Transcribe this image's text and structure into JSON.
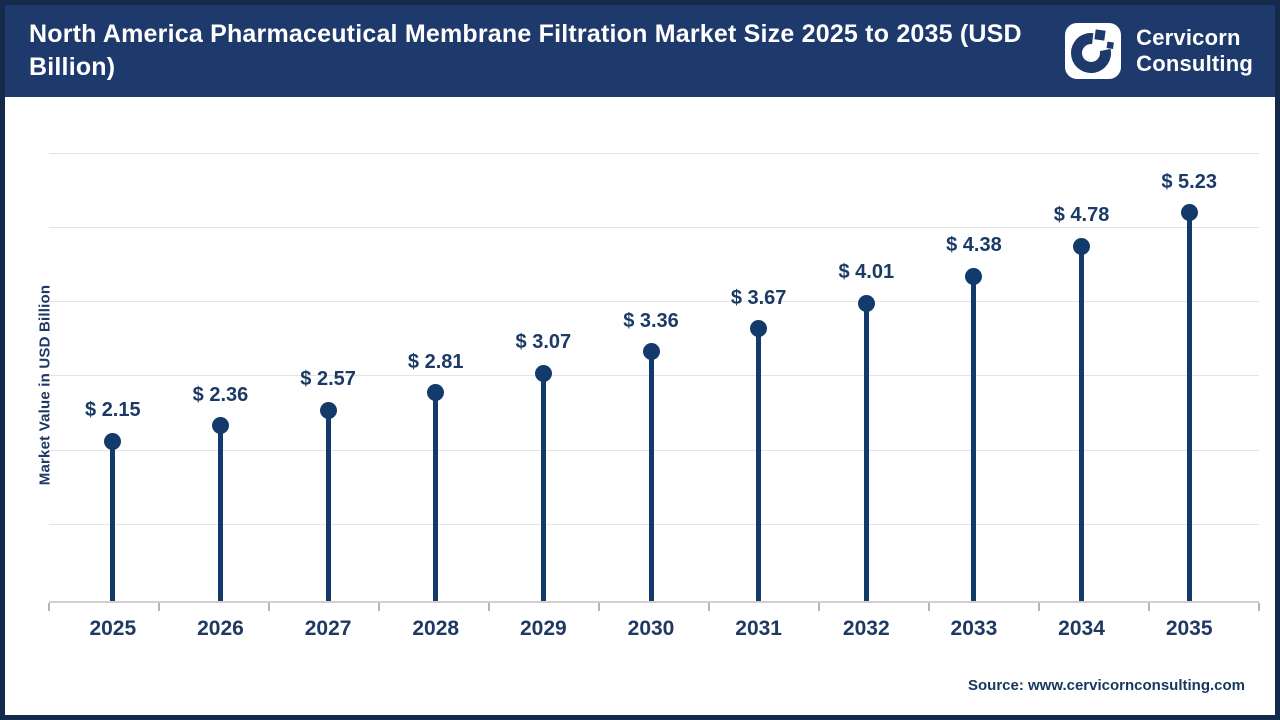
{
  "header": {
    "title": "North America Pharmaceutical Membrane Filtration Market Size 2025 to 2035 (USD Billion)",
    "logo": {
      "line1": "Cervicorn",
      "line2": "Consulting"
    }
  },
  "chart_data": {
    "type": "bar",
    "variant": "lollipop",
    "title": "North America Pharmaceutical Membrane Filtration Market Size 2025 to 2035 (USD Billion)",
    "categories": [
      "2025",
      "2026",
      "2027",
      "2028",
      "2029",
      "2030",
      "2031",
      "2032",
      "2033",
      "2034",
      "2035"
    ],
    "values": [
      2.15,
      2.36,
      2.57,
      2.81,
      3.07,
      3.36,
      3.67,
      4.01,
      4.38,
      4.78,
      5.23
    ],
    "value_labels": [
      "$ 2.15",
      "$ 2.36",
      "$ 2.57",
      "$ 2.81",
      "$ 3.07",
      "$ 3.36",
      "$ 3.67",
      "$ 4.01",
      "$ 4.38",
      "$ 4.78",
      "$ 5.23"
    ],
    "xlabel": "",
    "ylabel": "Market Value in USD Billion",
    "ylim": [
      0,
      6
    ],
    "grid": "horizontal",
    "legend": "none",
    "colors": {
      "stem": "#123a6b",
      "marker": "#123a6b",
      "label_text": "#1b3a66",
      "header_bg": "#1e3a6d",
      "frame_border": "#152a4a",
      "gridline": "#e4e4e4"
    }
  },
  "footer": {
    "source": "Source: www.cervicornconsulting.com"
  }
}
